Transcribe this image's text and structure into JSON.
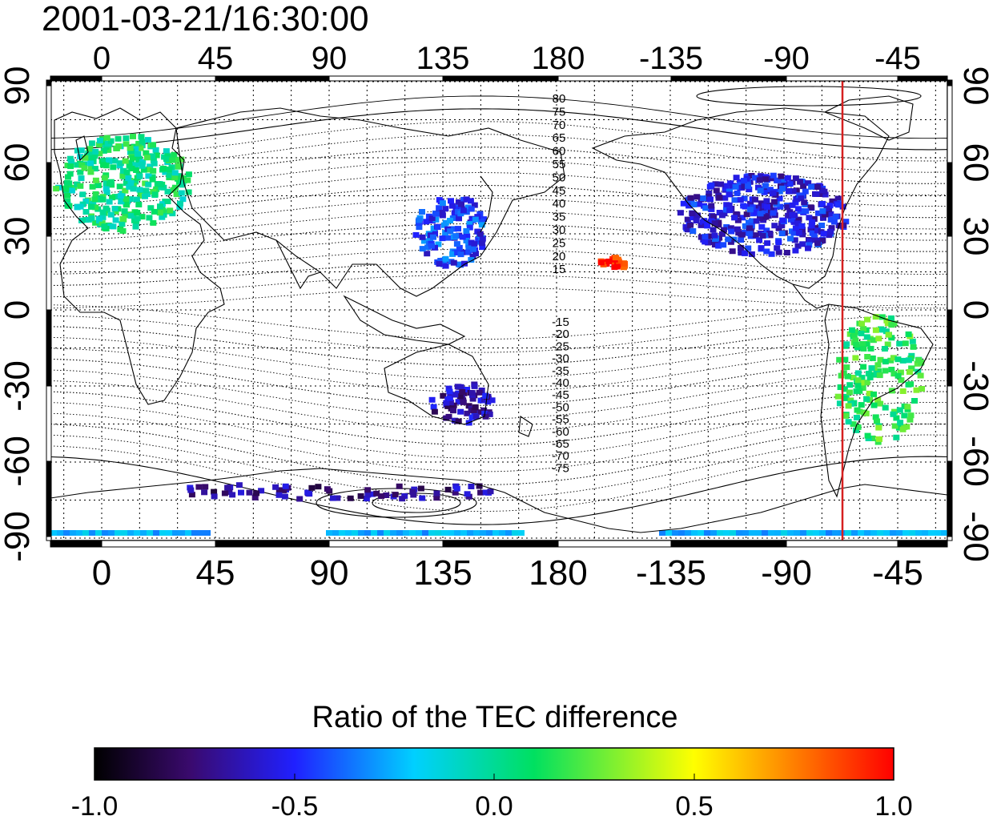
{
  "title": "2001-03-21/16:30:00",
  "axes": {
    "lon_ticks": [
      "0",
      "45",
      "90",
      "135",
      "180",
      "-135",
      "-90",
      "-45"
    ],
    "lat_ticks": [
      "90",
      "60",
      "30",
      "0",
      "-30",
      "-60",
      "-90"
    ]
  },
  "mlat_labels_north": [
    "80",
    "75",
    "70",
    "65",
    "60",
    "55",
    "50",
    "45",
    "40",
    "35",
    "30",
    "25",
    "20",
    "15"
  ],
  "mlat_labels_south": [
    "-15",
    "-20",
    "-25",
    "-30",
    "-35",
    "-40",
    "-45",
    "-50",
    "-55",
    "-60",
    "-65",
    "-70",
    "-75"
  ],
  "colorbar": {
    "label": "Ratio of the TEC difference",
    "tick_labels": [
      "-1.0",
      "-0.5",
      "0.0",
      "0.5",
      "1.0"
    ],
    "range": [
      -1.0,
      1.0
    ],
    "colors": [
      "#000000",
      "#4b0f8c",
      "#1a2bff",
      "#00e0ff",
      "#2dd52d",
      "#ffff00",
      "#ff0000"
    ]
  },
  "colors": {
    "terminator": "#d62020",
    "coast": "#000000",
    "grid": "#000000"
  },
  "regions": [
    {
      "name": "europe",
      "value": 0.05
    },
    {
      "name": "east-asia",
      "value": -0.45
    },
    {
      "name": "north-america",
      "value": -0.55
    },
    {
      "name": "south-america",
      "value": 0.15
    },
    {
      "name": "pacific-hawaii",
      "value": 0.95
    },
    {
      "name": "antarctica",
      "value": -0.7
    },
    {
      "name": "australia",
      "value": -0.65
    }
  ]
}
